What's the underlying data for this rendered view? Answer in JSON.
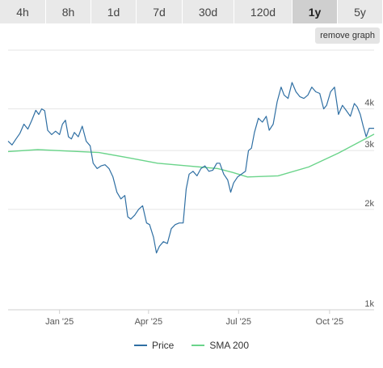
{
  "range_tabs": [
    {
      "label": "4h",
      "active": false
    },
    {
      "label": "8h",
      "active": false
    },
    {
      "label": "1d",
      "active": false
    },
    {
      "label": "7d",
      "active": false
    },
    {
      "label": "30d",
      "active": false
    },
    {
      "label": "120d",
      "active": false
    },
    {
      "label": "1y",
      "active": true
    },
    {
      "label": "5y",
      "active": false
    }
  ],
  "remove_graph_label": "remove graph",
  "colors": {
    "price": "#2f6fa3",
    "sma": "#6ad48a",
    "grid": "#e5e5e5",
    "axis_text": "#555555"
  },
  "chart_data": {
    "type": "line",
    "title": "",
    "xlabel": "",
    "ylabel": "",
    "y_scale": "log",
    "ylim": [
      1000,
      6000
    ],
    "y_ticks": [
      {
        "value": 1000,
        "label": "1k"
      },
      {
        "value": 2000,
        "label": "2k"
      },
      {
        "value": 3000,
        "label": "3k"
      },
      {
        "value": 4000,
        "label": "4k"
      }
    ],
    "x_ticks": [
      {
        "value": "2025-01-01",
        "label": "Jan '25"
      },
      {
        "value": "2025-04-01",
        "label": "Apr '25"
      },
      {
        "value": "2025-07-01",
        "label": "Jul '25"
      },
      {
        "value": "2025-10-01",
        "label": "Oct '25"
      }
    ],
    "xlim": [
      "2024-11-10",
      "2025-11-15"
    ],
    "grid": true,
    "legend_position": "bottom",
    "series": [
      {
        "name": "Price",
        "points": [
          [
            "2024-11-10",
            3200
          ],
          [
            "2024-11-14",
            3120
          ],
          [
            "2024-11-18",
            3250
          ],
          [
            "2024-11-22",
            3380
          ],
          [
            "2024-11-26",
            3600
          ],
          [
            "2024-11-30",
            3480
          ],
          [
            "2024-12-04",
            3700
          ],
          [
            "2024-12-08",
            3960
          ],
          [
            "2024-12-11",
            3850
          ],
          [
            "2024-12-14",
            4000
          ],
          [
            "2024-12-17",
            3950
          ],
          [
            "2024-12-20",
            3450
          ],
          [
            "2024-12-24",
            3350
          ],
          [
            "2024-12-28",
            3430
          ],
          [
            "2025-01-01",
            3350
          ],
          [
            "2025-01-04",
            3600
          ],
          [
            "2025-01-07",
            3700
          ],
          [
            "2025-01-10",
            3300
          ],
          [
            "2025-01-13",
            3250
          ],
          [
            "2025-01-16",
            3400
          ],
          [
            "2025-01-20",
            3300
          ],
          [
            "2025-01-24",
            3550
          ],
          [
            "2025-01-28",
            3200
          ],
          [
            "2025-02-01",
            3100
          ],
          [
            "2025-02-04",
            2750
          ],
          [
            "2025-02-08",
            2650
          ],
          [
            "2025-02-12",
            2700
          ],
          [
            "2025-02-16",
            2720
          ],
          [
            "2025-02-20",
            2650
          ],
          [
            "2025-02-24",
            2500
          ],
          [
            "2025-02-28",
            2250
          ],
          [
            "2025-03-04",
            2150
          ],
          [
            "2025-03-08",
            2200
          ],
          [
            "2025-03-11",
            1900
          ],
          [
            "2025-03-14",
            1870
          ],
          [
            "2025-03-18",
            1920
          ],
          [
            "2025-03-22",
            2000
          ],
          [
            "2025-03-26",
            2050
          ],
          [
            "2025-03-30",
            1820
          ],
          [
            "2025-04-02",
            1800
          ],
          [
            "2025-04-06",
            1650
          ],
          [
            "2025-04-09",
            1480
          ],
          [
            "2025-04-12",
            1550
          ],
          [
            "2025-04-16",
            1600
          ],
          [
            "2025-04-20",
            1580
          ],
          [
            "2025-04-24",
            1750
          ],
          [
            "2025-04-28",
            1800
          ],
          [
            "2025-05-02",
            1820
          ],
          [
            "2025-05-06",
            1820
          ],
          [
            "2025-05-09",
            2300
          ],
          [
            "2025-05-12",
            2550
          ],
          [
            "2025-05-16",
            2600
          ],
          [
            "2025-05-20",
            2520
          ],
          [
            "2025-05-24",
            2650
          ],
          [
            "2025-05-28",
            2700
          ],
          [
            "2025-06-01",
            2600
          ],
          [
            "2025-06-05",
            2620
          ],
          [
            "2025-06-09",
            2750
          ],
          [
            "2025-06-12",
            2750
          ],
          [
            "2025-06-16",
            2550
          ],
          [
            "2025-06-20",
            2450
          ],
          [
            "2025-06-23",
            2250
          ],
          [
            "2025-06-26",
            2400
          ],
          [
            "2025-06-30",
            2500
          ],
          [
            "2025-07-04",
            2550
          ],
          [
            "2025-07-08",
            2600
          ],
          [
            "2025-07-11",
            3000
          ],
          [
            "2025-07-14",
            3050
          ],
          [
            "2025-07-17",
            3400
          ],
          [
            "2025-07-21",
            3750
          ],
          [
            "2025-07-25",
            3650
          ],
          [
            "2025-07-29",
            3800
          ],
          [
            "2025-08-01",
            3450
          ],
          [
            "2025-08-05",
            3600
          ],
          [
            "2025-08-09",
            4200
          ],
          [
            "2025-08-13",
            4650
          ],
          [
            "2025-08-16",
            4400
          ],
          [
            "2025-08-20",
            4300
          ],
          [
            "2025-08-24",
            4800
          ],
          [
            "2025-08-28",
            4500
          ],
          [
            "2025-09-01",
            4350
          ],
          [
            "2025-09-05",
            4300
          ],
          [
            "2025-09-09",
            4400
          ],
          [
            "2025-09-13",
            4650
          ],
          [
            "2025-09-17",
            4500
          ],
          [
            "2025-09-21",
            4450
          ],
          [
            "2025-09-25",
            4000
          ],
          [
            "2025-09-28",
            4100
          ],
          [
            "2025-10-02",
            4500
          ],
          [
            "2025-10-06",
            4650
          ],
          [
            "2025-10-10",
            3850
          ],
          [
            "2025-10-14",
            4100
          ],
          [
            "2025-10-18",
            3950
          ],
          [
            "2025-10-22",
            3800
          ],
          [
            "2025-10-26",
            4150
          ],
          [
            "2025-10-29",
            4050
          ],
          [
            "2025-11-01",
            3850
          ],
          [
            "2025-11-04",
            3550
          ],
          [
            "2025-11-07",
            3300
          ],
          [
            "2025-11-10",
            3500
          ],
          [
            "2025-11-15",
            3500
          ]
        ]
      },
      {
        "name": "SMA 200",
        "points": [
          [
            "2024-11-10",
            2980
          ],
          [
            "2024-12-10",
            3020
          ],
          [
            "2025-01-10",
            2990
          ],
          [
            "2025-02-10",
            2960
          ],
          [
            "2025-03-10",
            2860
          ],
          [
            "2025-04-10",
            2750
          ],
          [
            "2025-05-10",
            2700
          ],
          [
            "2025-06-10",
            2650
          ],
          [
            "2025-06-25",
            2580
          ],
          [
            "2025-07-10",
            2500
          ],
          [
            "2025-08-10",
            2520
          ],
          [
            "2025-09-10",
            2680
          ],
          [
            "2025-10-10",
            2950
          ],
          [
            "2025-11-15",
            3360
          ]
        ]
      }
    ]
  }
}
